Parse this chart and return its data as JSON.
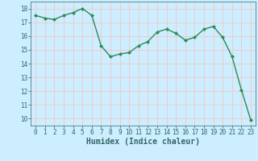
{
  "x": [
    0,
    1,
    2,
    3,
    4,
    5,
    6,
    7,
    8,
    9,
    10,
    11,
    12,
    13,
    14,
    15,
    16,
    17,
    18,
    19,
    20,
    21,
    22,
    23
  ],
  "y": [
    17.5,
    17.3,
    17.2,
    17.5,
    17.7,
    18.0,
    17.5,
    15.3,
    14.5,
    14.7,
    14.8,
    15.3,
    15.6,
    16.3,
    16.5,
    16.2,
    15.7,
    15.9,
    16.5,
    16.7,
    15.9,
    14.5,
    12.1,
    9.9
  ],
  "line_color": "#2e8b57",
  "marker": "D",
  "marker_size": 2.0,
  "xlabel": "Humidex (Indice chaleur)",
  "ylim": [
    9.5,
    18.5
  ],
  "xlim": [
    -0.5,
    23.5
  ],
  "yticks": [
    10,
    11,
    12,
    13,
    14,
    15,
    16,
    17,
    18
  ],
  "xticks": [
    0,
    1,
    2,
    3,
    4,
    5,
    6,
    7,
    8,
    9,
    10,
    11,
    12,
    13,
    14,
    15,
    16,
    17,
    18,
    19,
    20,
    21,
    22,
    23
  ],
  "bg_color": "#cceeff",
  "grid_color": "#f5c5c5",
  "line_width": 1.0,
  "marker_color": "#2e8b57",
  "tick_fontsize": 5.5,
  "xlabel_fontsize": 7.0,
  "xlabel_bold": true
}
